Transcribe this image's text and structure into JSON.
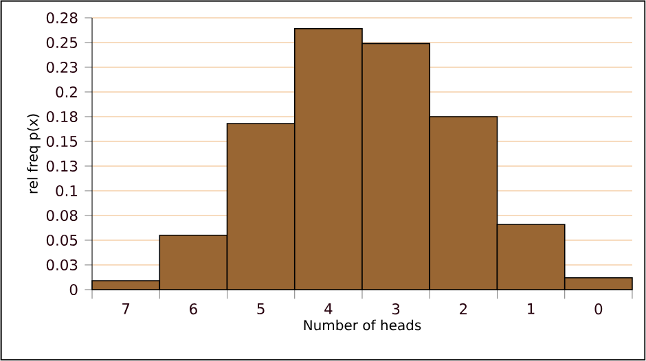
{
  "chart_data": {
    "type": "bar",
    "xlabel": "Number of heads",
    "ylabel": "rel freq p(x)",
    "categories": [
      "7",
      "6",
      "5",
      "4",
      "3",
      "2",
      "1",
      "0"
    ],
    "values": [
      0.009,
      0.055,
      0.168,
      0.264,
      0.249,
      0.175,
      0.066,
      0.012
    ],
    "color": "#996633",
    "ylim": [
      0,
      0.275
    ],
    "yticks": [
      0,
      {
        "value": 0.025,
        "label": "0.03"
      },
      0.05,
      {
        "value": 0.075,
        "label": "0.08"
      },
      0.1,
      {
        "value": 0.125,
        "label": "0.13"
      },
      0.15,
      {
        "value": 0.175,
        "label": "0.18"
      },
      0.2,
      {
        "value": 0.225,
        "label": "0.23"
      },
      0.25,
      {
        "value": 0.275,
        "label": "0.28"
      }
    ],
    "grid": "y"
  }
}
